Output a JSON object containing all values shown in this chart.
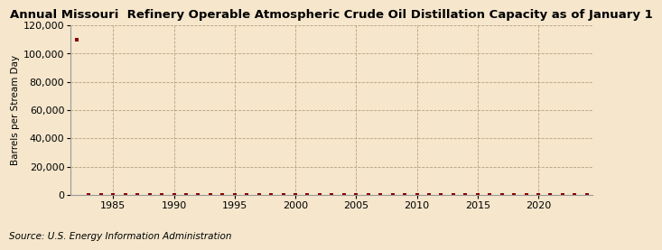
{
  "title": "Annual Missouri  Refinery Operable Atmospheric Crude Oil Distillation Capacity as of January 1",
  "ylabel": "Barrels per Stream Day",
  "source": "Source: U.S. Energy Information Administration",
  "background_color": "#f5e6cc",
  "plot_background_color": "#f5e6cc",
  "line_color": "#8b0000",
  "marker_color": "#8b0000",
  "grid_color": "#b8a080",
  "ylim": [
    0,
    120000
  ],
  "yticks": [
    0,
    20000,
    40000,
    60000,
    80000,
    100000,
    120000
  ],
  "xlim": [
    1981.5,
    2024.5
  ],
  "xticks": [
    1985,
    1990,
    1995,
    2000,
    2005,
    2010,
    2015,
    2020
  ],
  "data_years": [
    1982,
    1983,
    1984,
    1985,
    1986,
    1987,
    1988,
    1989,
    1990,
    1991,
    1992,
    1993,
    1994,
    1995,
    1996,
    1997,
    1998,
    1999,
    2000,
    2001,
    2002,
    2003,
    2004,
    2005,
    2006,
    2007,
    2008,
    2009,
    2010,
    2011,
    2012,
    2013,
    2014,
    2015,
    2016,
    2017,
    2018,
    2019,
    2020,
    2021,
    2022,
    2023,
    2024
  ],
  "data_values": [
    110000,
    0,
    0,
    0,
    0,
    0,
    0,
    0,
    0,
    0,
    0,
    0,
    0,
    0,
    0,
    0,
    0,
    0,
    0,
    0,
    0,
    0,
    0,
    0,
    0,
    0,
    0,
    0,
    0,
    0,
    0,
    0,
    0,
    0,
    0,
    0,
    0,
    0,
    0,
    0,
    0,
    0,
    0
  ],
  "title_fontsize": 9.5,
  "axis_fontsize": 7.5,
  "tick_fontsize": 8,
  "source_fontsize": 7.5
}
